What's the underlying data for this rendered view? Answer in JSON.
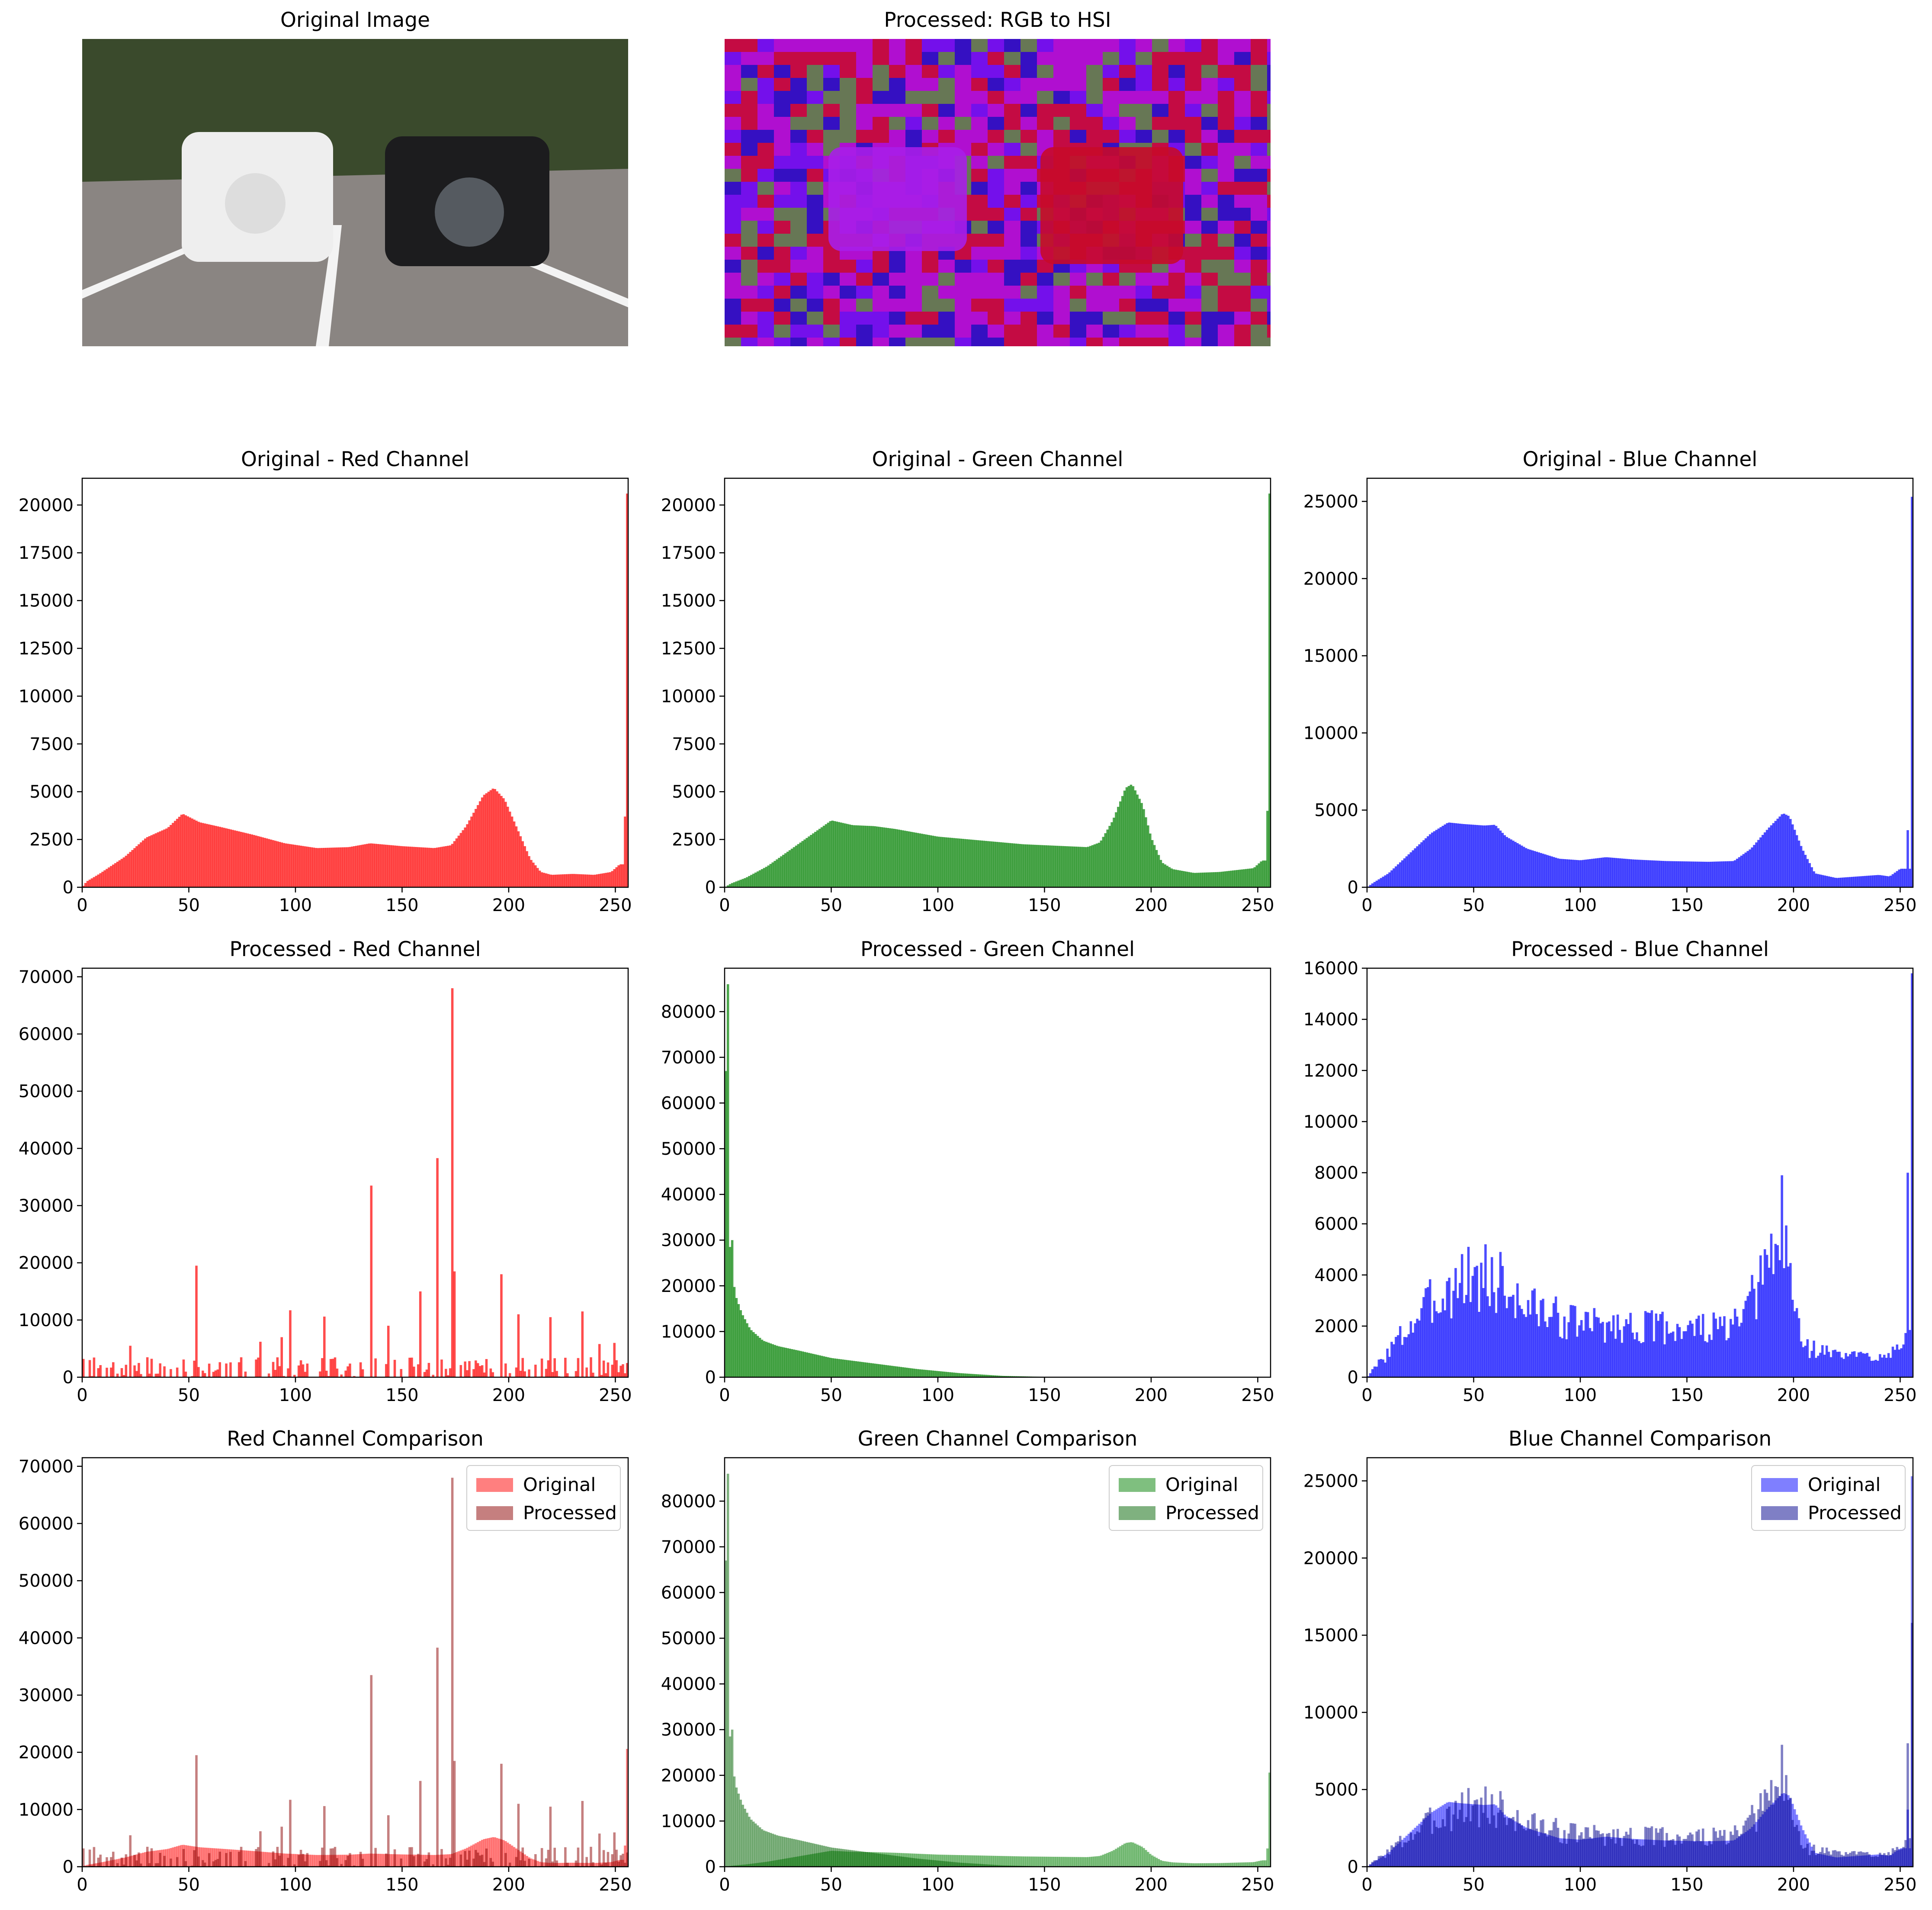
{
  "figure": {
    "image_panels": [
      {
        "title": "Original Image",
        "kind": "photo",
        "description_colors": {
          "sky": "#e8ece6",
          "trees": "#3a4a2c",
          "pavement": "#8a8582",
          "white_car": "#eeeeee",
          "black_car": "#1c1c1e",
          "lines": "#f3f3f3"
        }
      },
      {
        "title": "Processed: RGB to HSI",
        "kind": "false-color",
        "description_colors": {
          "magenta": "#b00fd0",
          "red": "#c80a2a",
          "violet": "#6a10f0",
          "blue": "#2010c0",
          "green": "#5a8a40",
          "purple_car": "#a81ee8"
        }
      }
    ]
  },
  "chart_data": [
    {
      "id": "orig_red",
      "type": "histogram",
      "title": "Original - Red Channel",
      "color": "#ff0000",
      "alpha": 0.7,
      "xlim": [
        0,
        256
      ],
      "ylim": [
        0,
        21400
      ],
      "xticks": [
        0,
        50,
        100,
        150,
        200,
        250
      ],
      "yticks": [
        0,
        2500,
        5000,
        7500,
        10000,
        12500,
        15000,
        17500,
        20000
      ],
      "profile": [
        [
          0,
          0
        ],
        [
          2,
          300
        ],
        [
          8,
          700
        ],
        [
          20,
          1600
        ],
        [
          30,
          2600
        ],
        [
          40,
          3100
        ],
        [
          47,
          3850
        ],
        [
          55,
          3400
        ],
        [
          65,
          3150
        ],
        [
          80,
          2750
        ],
        [
          95,
          2300
        ],
        [
          110,
          2050
        ],
        [
          125,
          2100
        ],
        [
          135,
          2300
        ],
        [
          150,
          2150
        ],
        [
          165,
          2050
        ],
        [
          173,
          2200
        ],
        [
          180,
          3200
        ],
        [
          188,
          4800
        ],
        [
          193,
          5200
        ],
        [
          198,
          4600
        ],
        [
          205,
          2800
        ],
        [
          210,
          1500
        ],
        [
          215,
          800
        ],
        [
          220,
          650
        ],
        [
          230,
          700
        ],
        [
          240,
          650
        ],
        [
          248,
          800
        ],
        [
          252,
          1200
        ]
      ],
      "spikes": [
        [
          254,
          3700
        ],
        [
          255,
          20600
        ]
      ]
    },
    {
      "id": "orig_green",
      "type": "histogram",
      "title": "Original - Green Channel",
      "color": "#008000",
      "alpha": 0.7,
      "xlim": [
        0,
        256
      ],
      "ylim": [
        0,
        21400
      ],
      "xticks": [
        0,
        50,
        100,
        150,
        200,
        250
      ],
      "yticks": [
        0,
        2500,
        5000,
        7500,
        10000,
        12500,
        15000,
        17500,
        20000
      ],
      "profile": [
        [
          0,
          0
        ],
        [
          3,
          200
        ],
        [
          10,
          500
        ],
        [
          20,
          1100
        ],
        [
          30,
          1900
        ],
        [
          40,
          2700
        ],
        [
          50,
          3500
        ],
        [
          60,
          3250
        ],
        [
          70,
          3200
        ],
        [
          80,
          3050
        ],
        [
          90,
          2850
        ],
        [
          100,
          2650
        ],
        [
          115,
          2500
        ],
        [
          125,
          2400
        ],
        [
          140,
          2250
        ],
        [
          160,
          2150
        ],
        [
          170,
          2100
        ],
        [
          176,
          2350
        ],
        [
          182,
          3500
        ],
        [
          188,
          5200
        ],
        [
          191,
          5400
        ],
        [
          196,
          4300
        ],
        [
          200,
          2600
        ],
        [
          205,
          1300
        ],
        [
          210,
          950
        ],
        [
          220,
          750
        ],
        [
          232,
          800
        ],
        [
          240,
          900
        ],
        [
          248,
          1000
        ],
        [
          252,
          1400
        ]
      ],
      "spikes": [
        [
          254,
          4000
        ],
        [
          255,
          20600
        ]
      ]
    },
    {
      "id": "orig_blue",
      "type": "histogram",
      "title": "Original - Blue Channel",
      "color": "#0000ff",
      "alpha": 0.7,
      "xlim": [
        0,
        256
      ],
      "ylim": [
        0,
        26500
      ],
      "xticks": [
        0,
        50,
        100,
        150,
        200,
        250
      ],
      "yticks": [
        0,
        5000,
        10000,
        15000,
        20000,
        25000
      ],
      "profile": [
        [
          0,
          0
        ],
        [
          3,
          300
        ],
        [
          10,
          900
        ],
        [
          20,
          2200
        ],
        [
          30,
          3500
        ],
        [
          38,
          4200
        ],
        [
          45,
          4100
        ],
        [
          55,
          4000
        ],
        [
          60,
          4050
        ],
        [
          65,
          3300
        ],
        [
          75,
          2500
        ],
        [
          90,
          1850
        ],
        [
          100,
          1750
        ],
        [
          112,
          1950
        ],
        [
          125,
          1800
        ],
        [
          140,
          1700
        ],
        [
          160,
          1650
        ],
        [
          172,
          1700
        ],
        [
          180,
          2500
        ],
        [
          188,
          3800
        ],
        [
          195,
          4800
        ],
        [
          198,
          4600
        ],
        [
          204,
          2500
        ],
        [
          210,
          900
        ],
        [
          220,
          600
        ],
        [
          230,
          700
        ],
        [
          240,
          800
        ],
        [
          245,
          700
        ],
        [
          250,
          1200
        ]
      ],
      "spikes": [
        [
          253,
          3700
        ],
        [
          255,
          25300
        ]
      ]
    },
    {
      "id": "proc_red",
      "type": "histogram",
      "title": "Processed - Red Channel",
      "color": "#ff0000",
      "alpha": 0.7,
      "xlim": [
        0,
        256
      ],
      "ylim": [
        0,
        71500
      ],
      "xticks": [
        0,
        50,
        100,
        150,
        200,
        250
      ],
      "yticks": [
        0,
        10000,
        20000,
        30000,
        40000,
        50000,
        60000,
        70000
      ],
      "noise": {
        "max": 3500,
        "density": 0.55,
        "seed": 7
      },
      "spikes": [
        [
          53,
          19500
        ],
        [
          97,
          11700
        ],
        [
          113,
          10600
        ],
        [
          135,
          33500
        ],
        [
          143,
          9000
        ],
        [
          158,
          15000
        ],
        [
          166,
          38300
        ],
        [
          173,
          68000
        ],
        [
          174,
          18500
        ],
        [
          196,
          18000
        ],
        [
          204,
          11000
        ],
        [
          219,
          10500
        ],
        [
          234,
          11500
        ],
        [
          242,
          5800
        ],
        [
          249,
          6000
        ],
        [
          22,
          5500
        ],
        [
          83,
          6200
        ],
        [
          93,
          7000
        ]
      ]
    },
    {
      "id": "proc_green",
      "type": "histogram",
      "title": "Processed - Green Channel",
      "color": "#008000",
      "alpha": 0.7,
      "xlim": [
        0,
        256
      ],
      "ylim": [
        0,
        89500
      ],
      "xticks": [
        0,
        50,
        100,
        150,
        200,
        250
      ],
      "yticks": [
        0,
        10000,
        20000,
        30000,
        40000,
        50000,
        60000,
        70000,
        80000
      ],
      "profile": [
        [
          0,
          48000
        ],
        [
          1,
          86000
        ],
        [
          2,
          32000
        ],
        [
          3,
          25000
        ],
        [
          5,
          18000
        ],
        [
          8,
          14000
        ],
        [
          12,
          10500
        ],
        [
          18,
          8000
        ],
        [
          25,
          6800
        ],
        [
          35,
          5800
        ],
        [
          50,
          4200
        ],
        [
          70,
          3000
        ],
        [
          90,
          1800
        ],
        [
          110,
          900
        ],
        [
          130,
          300
        ],
        [
          150,
          80
        ],
        [
          170,
          20
        ],
        [
          200,
          0
        ],
        [
          256,
          0
        ]
      ],
      "spikes": [
        [
          1,
          86000
        ],
        [
          3,
          30000
        ]
      ]
    },
    {
      "id": "proc_blue",
      "type": "histogram",
      "title": "Processed - Blue Channel",
      "color": "#0000ff",
      "alpha": 0.7,
      "xlim": [
        0,
        256
      ],
      "ylim": [
        0,
        16000
      ],
      "xticks": [
        0,
        50,
        100,
        150,
        200,
        250
      ],
      "yticks": [
        0,
        2000,
        4000,
        6000,
        8000,
        10000,
        12000,
        14000,
        16000
      ],
      "profile": [
        [
          0,
          0
        ],
        [
          5,
          500
        ],
        [
          15,
          1500
        ],
        [
          25,
          2500
        ],
        [
          35,
          3300
        ],
        [
          45,
          3800
        ],
        [
          55,
          3700
        ],
        [
          65,
          3300
        ],
        [
          75,
          2800
        ],
        [
          90,
          2300
        ],
        [
          100,
          2100
        ],
        [
          120,
          2000
        ],
        [
          140,
          1950
        ],
        [
          160,
          1900
        ],
        [
          172,
          1950
        ],
        [
          178,
          2500
        ],
        [
          185,
          3800
        ],
        [
          192,
          5000
        ],
        [
          196,
          5200
        ],
        [
          200,
          3000
        ],
        [
          205,
          1200
        ],
        [
          220,
          900
        ],
        [
          235,
          800
        ],
        [
          245,
          1000
        ],
        [
          250,
          1500
        ]
      ],
      "jitter": {
        "amount": 0.35,
        "seed": 3
      },
      "spikes": [
        [
          55,
          5200
        ],
        [
          62,
          4900
        ],
        [
          47,
          5100
        ],
        [
          194,
          7900
        ],
        [
          253,
          8000
        ],
        [
          255,
          15800
        ]
      ]
    },
    {
      "id": "cmp_red",
      "type": "histogram-overlay",
      "title": "Red Channel Comparison",
      "xlim": [
        0,
        256
      ],
      "ylim": [
        0,
        71500
      ],
      "xticks": [
        0,
        50,
        100,
        150,
        200,
        250
      ],
      "yticks": [
        0,
        10000,
        20000,
        30000,
        40000,
        50000,
        60000,
        70000
      ],
      "series": [
        {
          "name": "Original",
          "color": "#ff0000",
          "alpha": 0.5,
          "ref": "orig_red"
        },
        {
          "name": "Processed",
          "color": "#8b0000",
          "alpha": 0.5,
          "ref": "proc_red"
        }
      ],
      "legend": "top-right"
    },
    {
      "id": "cmp_green",
      "type": "histogram-overlay",
      "title": "Green Channel Comparison",
      "xlim": [
        0,
        256
      ],
      "ylim": [
        0,
        89500
      ],
      "xticks": [
        0,
        50,
        100,
        150,
        200,
        250
      ],
      "yticks": [
        0,
        10000,
        20000,
        30000,
        40000,
        50000,
        60000,
        70000,
        80000
      ],
      "series": [
        {
          "name": "Original",
          "color": "#008000",
          "alpha": 0.5,
          "ref": "orig_green"
        },
        {
          "name": "Processed",
          "color": "#006400",
          "alpha": 0.5,
          "ref": "proc_green"
        }
      ],
      "legend": "top-right"
    },
    {
      "id": "cmp_blue",
      "type": "histogram-overlay",
      "title": "Blue Channel Comparison",
      "xlim": [
        0,
        256
      ],
      "ylim": [
        0,
        26500
      ],
      "xticks": [
        0,
        50,
        100,
        150,
        200,
        250
      ],
      "yticks": [
        0,
        5000,
        10000,
        15000,
        20000,
        25000
      ],
      "series": [
        {
          "name": "Original",
          "color": "#0000ff",
          "alpha": 0.5,
          "ref": "orig_blue"
        },
        {
          "name": "Processed",
          "color": "#00008b",
          "alpha": 0.5,
          "ref": "proc_blue"
        }
      ],
      "legend": "top-right"
    }
  ]
}
